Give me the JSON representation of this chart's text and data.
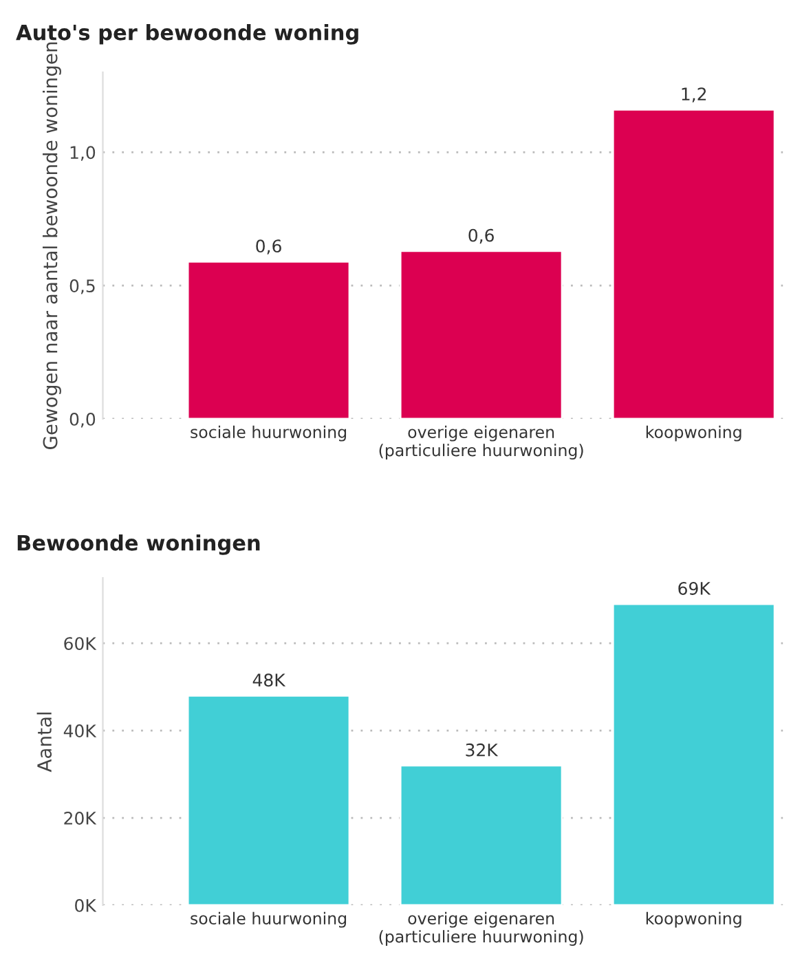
{
  "chart_data": [
    {
      "type": "bar",
      "title": "Auto's per bewoonde woning",
      "ylabel": "Gewogen naar aantal bewoonde woningen",
      "categories": [
        "sociale huurwoning",
        "overige eigenaren\n(particuliere huurwoning)",
        "koopwoning"
      ],
      "values": [
        0.59,
        0.63,
        1.16
      ],
      "value_labels": [
        "0,6",
        "0,6",
        "1,2"
      ],
      "color": "#dc0051",
      "ylim": [
        0,
        1.3
      ],
      "yticks": [
        {
          "value": 0,
          "label": "0,0"
        },
        {
          "value": 0.5,
          "label": "0,5"
        },
        {
          "value": 1,
          "label": "1,0"
        }
      ],
      "grid": "y",
      "legend": false
    },
    {
      "type": "bar",
      "title": "Bewoonde woningen",
      "ylabel": "Aantal",
      "categories": [
        "sociale huurwoning",
        "overige eigenaren\n(particuliere huurwoning)",
        "koopwoning"
      ],
      "values": [
        48000,
        32000,
        69000
      ],
      "value_labels": [
        "48K",
        "32K",
        "69K"
      ],
      "color": "#41cfd6",
      "ylim": [
        0,
        75000
      ],
      "yticks": [
        {
          "value": 0,
          "label": "0K"
        },
        {
          "value": 20000,
          "label": "20K"
        },
        {
          "value": 40000,
          "label": "40K"
        },
        {
          "value": 60000,
          "label": "60K"
        }
      ],
      "grid": "y",
      "legend": false
    }
  ]
}
